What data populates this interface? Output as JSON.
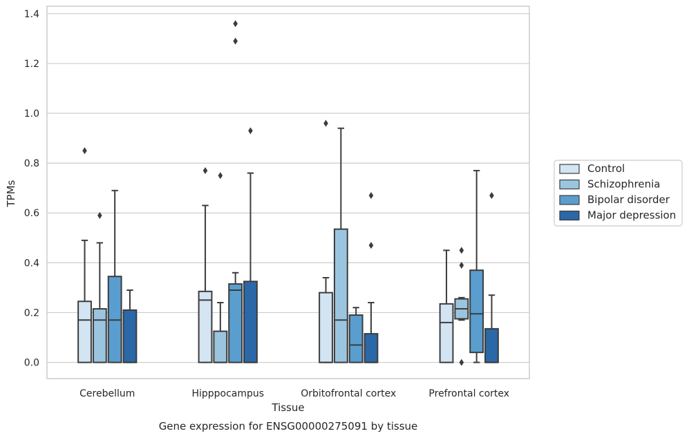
{
  "chart_data": {
    "type": "box",
    "caption": "Gene expression for ENSG00000275091 by tissue",
    "xlabel": "Tissue",
    "ylabel": "TPMs",
    "ylim": [
      -0.065,
      1.43
    ],
    "yticks": [
      "0.0",
      "0.2",
      "0.4",
      "0.6",
      "0.8",
      "1.0",
      "1.2",
      "1.4"
    ],
    "grid": true,
    "legend_position": "right",
    "categories": [
      "Cerebellum",
      "Hipppocampus",
      "Orbitofrontal cortex",
      "Prefrontal cortex"
    ],
    "series": [
      {
        "name": "Control",
        "color": "#d3e4f3",
        "boxes": [
          {
            "whislo": 0.0,
            "q1": 0.0,
            "med": 0.17,
            "q3": 0.245,
            "whishi": 0.49,
            "fliers": [
              0.85
            ]
          },
          {
            "whislo": 0.0,
            "q1": 0.0,
            "med": 0.25,
            "q3": 0.285,
            "whishi": 0.63,
            "fliers": [
              0.77
            ]
          },
          {
            "whislo": 0.0,
            "q1": 0.0,
            "med": 0.0,
            "q3": 0.28,
            "whishi": 0.34,
            "fliers": [
              0.96
            ]
          },
          {
            "whislo": 0.0,
            "q1": 0.0,
            "med": 0.16,
            "q3": 0.235,
            "whishi": 0.45,
            "fliers": []
          }
        ]
      },
      {
        "name": "Schizophrenia",
        "color": "#9bc5df",
        "boxes": [
          {
            "whislo": 0.0,
            "q1": 0.0,
            "med": 0.17,
            "q3": 0.215,
            "whishi": 0.48,
            "fliers": [
              0.59
            ]
          },
          {
            "whislo": 0.0,
            "q1": 0.0,
            "med": 0.0,
            "q3": 0.125,
            "whishi": 0.24,
            "fliers": [
              0.75
            ]
          },
          {
            "whislo": 0.0,
            "q1": 0.0,
            "med": 0.17,
            "q3": 0.535,
            "whishi": 0.94,
            "fliers": []
          },
          {
            "whislo": 0.17,
            "q1": 0.175,
            "med": 0.215,
            "q3": 0.255,
            "whishi": 0.26,
            "fliers": [
              0.0,
              0.39,
              0.45
            ]
          }
        ]
      },
      {
        "name": "Bipolar disorder",
        "color": "#5a9ecf",
        "boxes": [
          {
            "whislo": 0.0,
            "q1": 0.0,
            "med": 0.17,
            "q3": 0.345,
            "whishi": 0.69,
            "fliers": []
          },
          {
            "whislo": 0.0,
            "q1": 0.0,
            "med": 0.29,
            "q3": 0.315,
            "whishi": 0.36,
            "fliers": [
              1.29,
              1.36
            ]
          },
          {
            "whislo": 0.0,
            "q1": 0.0,
            "med": 0.07,
            "q3": 0.19,
            "whishi": 0.22,
            "fliers": []
          },
          {
            "whislo": 0.0,
            "q1": 0.04,
            "med": 0.195,
            "q3": 0.37,
            "whishi": 0.77,
            "fliers": []
          }
        ]
      },
      {
        "name": "Major depression",
        "color": "#2a68a8",
        "boxes": [
          {
            "whislo": 0.0,
            "q1": 0.0,
            "med": 0.0,
            "q3": 0.21,
            "whishi": 0.29,
            "fliers": []
          },
          {
            "whislo": 0.0,
            "q1": 0.0,
            "med": 0.0,
            "q3": 0.325,
            "whishi": 0.76,
            "fliers": [
              0.93
            ]
          },
          {
            "whislo": 0.0,
            "q1": 0.0,
            "med": 0.0,
            "q3": 0.115,
            "whishi": 0.24,
            "fliers": [
              0.47,
              0.67
            ]
          },
          {
            "whislo": 0.0,
            "q1": 0.0,
            "med": 0.0,
            "q3": 0.135,
            "whishi": 0.27,
            "fliers": [
              0.67
            ]
          }
        ]
      }
    ]
  }
}
